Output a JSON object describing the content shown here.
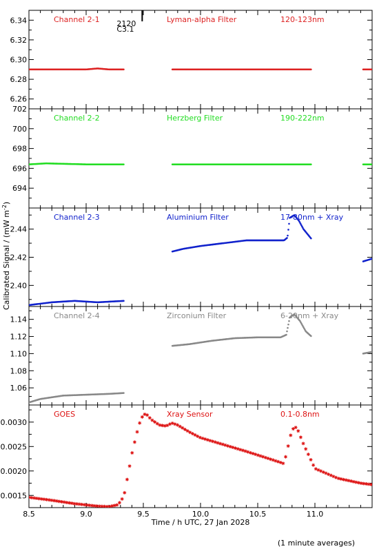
{
  "figure": {
    "ylabel_main": "Calibrated Signal / (mW m",
    "ylabel_sup": "-2",
    "ylabel_close": ")",
    "xlabel": "Time / h UTC, 27 Jan 2028",
    "footnote": "(1 minute averages)",
    "event_marker": {
      "time": 9.49,
      "label_top": "2120",
      "label_bottom": "C3.1"
    },
    "xlim": [
      8.5,
      11.5
    ],
    "xticks": [
      "8.5",
      "9.0",
      "9.5",
      "10.0",
      "10.5",
      "11.0"
    ],
    "xtick_values": [
      8.5,
      9.0,
      9.5,
      10.0,
      10.5,
      11.0
    ]
  },
  "chart_data": [
    {
      "type": "scatter",
      "name": "Channel 2-1",
      "filter": "Lyman-alpha Filter",
      "band": "120-123nm",
      "color": "#dd2222",
      "ylim": [
        6.25,
        6.35
      ],
      "yticks": [
        "6.26",
        "6.28",
        "6.30",
        "6.32",
        "6.34"
      ],
      "ytick_values": [
        6.26,
        6.28,
        6.3,
        6.32,
        6.34
      ],
      "points": [
        [
          8.5,
          6.29
        ],
        [
          8.8,
          6.29
        ],
        [
          9.0,
          6.29
        ],
        [
          9.1,
          6.291
        ],
        [
          9.2,
          6.29
        ],
        [
          9.33,
          6.29
        ],
        [
          9.75,
          6.29
        ],
        [
          10.0,
          6.29
        ],
        [
          10.5,
          6.29
        ],
        [
          10.8,
          6.29
        ],
        [
          10.97,
          6.29
        ],
        [
          11.42,
          6.29
        ],
        [
          11.5,
          6.29
        ]
      ],
      "segments": [
        [
          8.5,
          9.33
        ],
        [
          9.75,
          10.97
        ],
        [
          11.42,
          11.5
        ]
      ]
    },
    {
      "type": "scatter",
      "name": "Channel 2-2",
      "filter": "Herzberg Filter",
      "band": "190-222nm",
      "color": "#22dd22",
      "ylim": [
        692.0,
        702.0
      ],
      "yticks": [
        "694",
        "696",
        "698",
        "700",
        "702"
      ],
      "ytick_values": [
        694,
        696,
        698,
        700,
        702
      ],
      "points": [
        [
          8.5,
          696.4
        ],
        [
          8.65,
          696.5
        ],
        [
          9.0,
          696.4
        ],
        [
          9.33,
          696.4
        ],
        [
          9.75,
          696.4
        ],
        [
          10.5,
          696.4
        ],
        [
          10.97,
          696.4
        ],
        [
          11.42,
          696.4
        ],
        [
          11.5,
          696.4
        ]
      ],
      "segments": [
        [
          8.5,
          9.33
        ],
        [
          9.75,
          10.97
        ],
        [
          11.42,
          11.5
        ]
      ]
    },
    {
      "type": "scatter",
      "name": "Channel 2-3",
      "filter": "Aluminium Filter",
      "band": "17-80nm + Xray",
      "color": "#1122cc",
      "ylim": [
        2.385,
        2.455
      ],
      "yticks": [
        "2.40",
        "2.42",
        "2.44"
      ],
      "ytick_values": [
        2.4,
        2.42,
        2.44
      ],
      "points": [
        [
          8.5,
          2.386
        ],
        [
          8.7,
          2.388
        ],
        [
          8.9,
          2.389
        ],
        [
          9.1,
          2.388
        ],
        [
          9.33,
          2.389
        ],
        [
          9.75,
          2.424
        ],
        [
          9.85,
          2.426
        ],
        [
          10.0,
          2.428
        ],
        [
          10.2,
          2.43
        ],
        [
          10.4,
          2.432
        ],
        [
          10.6,
          2.432
        ],
        [
          10.73,
          2.432
        ],
        [
          10.76,
          2.434
        ],
        [
          10.78,
          2.448
        ],
        [
          10.82,
          2.45
        ],
        [
          10.86,
          2.446
        ],
        [
          10.9,
          2.44
        ],
        [
          10.97,
          2.433
        ],
        [
          11.42,
          2.417
        ],
        [
          11.5,
          2.419
        ]
      ],
      "segments": [
        [
          8.5,
          9.33
        ],
        [
          9.75,
          10.97
        ],
        [
          11.42,
          11.5
        ]
      ]
    },
    {
      "type": "scatter",
      "name": "Channel 2-4",
      "filter": "Zirconium Filter",
      "band": "6-20nm + Xray",
      "color": "#888888",
      "ylim": [
        1.04,
        1.155
      ],
      "yticks": [
        "1.06",
        "1.08",
        "1.10",
        "1.12",
        "1.14"
      ],
      "ytick_values": [
        1.06,
        1.08,
        1.1,
        1.12,
        1.14
      ],
      "points": [
        [
          8.5,
          1.043
        ],
        [
          8.6,
          1.047
        ],
        [
          8.8,
          1.051
        ],
        [
          9.0,
          1.052
        ],
        [
          9.2,
          1.053
        ],
        [
          9.33,
          1.054
        ],
        [
          9.75,
          1.109
        ],
        [
          9.9,
          1.111
        ],
        [
          10.1,
          1.115
        ],
        [
          10.3,
          1.118
        ],
        [
          10.5,
          1.119
        ],
        [
          10.7,
          1.119
        ],
        [
          10.75,
          1.122
        ],
        [
          10.78,
          1.142
        ],
        [
          10.82,
          1.146
        ],
        [
          10.87,
          1.138
        ],
        [
          10.92,
          1.126
        ],
        [
          10.97,
          1.12
        ],
        [
          11.42,
          1.1
        ],
        [
          11.5,
          1.102
        ]
      ],
      "segments": [
        [
          8.5,
          9.33
        ],
        [
          9.75,
          10.97
        ],
        [
          11.42,
          11.5
        ]
      ]
    },
    {
      "type": "scatter",
      "name": "GOES",
      "filter": "Xray Sensor",
      "band": "0.1-0.8nm",
      "color": "#dd1111",
      "ylim": [
        0.00125,
        0.00335
      ],
      "yticks": [
        "0.0015",
        "0.0020",
        "0.0025",
        "0.0030"
      ],
      "ytick_values": [
        0.0015,
        0.002,
        0.0025,
        0.003
      ],
      "points": [
        [
          8.5,
          0.00146
        ],
        [
          8.7,
          0.0014
        ],
        [
          8.9,
          0.00133
        ],
        [
          9.1,
          0.00128
        ],
        [
          9.2,
          0.00127
        ],
        [
          9.28,
          0.00131
        ],
        [
          9.33,
          0.00148
        ],
        [
          9.36,
          0.00185
        ],
        [
          9.4,
          0.00235
        ],
        [
          9.44,
          0.00275
        ],
        [
          9.48,
          0.00308
        ],
        [
          9.52,
          0.00318
        ],
        [
          9.57,
          0.00305
        ],
        [
          9.64,
          0.00294
        ],
        [
          9.7,
          0.00292
        ],
        [
          9.75,
          0.00298
        ],
        [
          9.8,
          0.00294
        ],
        [
          9.9,
          0.0028
        ],
        [
          10.0,
          0.00268
        ],
        [
          10.2,
          0.00254
        ],
        [
          10.4,
          0.0024
        ],
        [
          10.6,
          0.00225
        ],
        [
          10.73,
          0.00215
        ],
        [
          10.76,
          0.00245
        ],
        [
          10.8,
          0.00285
        ],
        [
          10.84,
          0.0029
        ],
        [
          10.9,
          0.00255
        ],
        [
          11.0,
          0.00205
        ],
        [
          11.2,
          0.00185
        ],
        [
          11.4,
          0.00175
        ],
        [
          11.5,
          0.00172
        ]
      ]
    }
  ]
}
